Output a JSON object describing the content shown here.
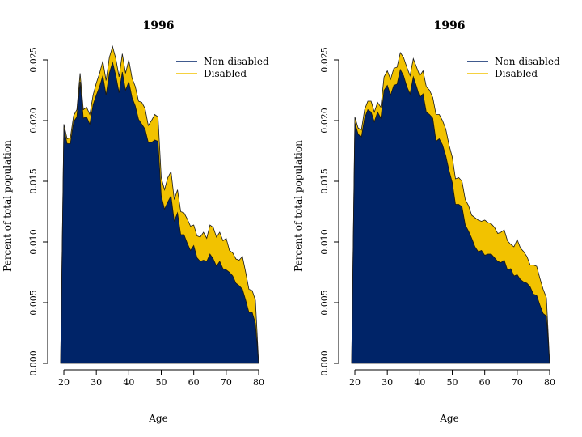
{
  "chart_data": [
    {
      "type": "area",
      "title": "1996",
      "xlabel": "Age",
      "ylabel": "Percent of total population",
      "xlim": [
        19,
        80
      ],
      "ylim": [
        0,
        0.025
      ],
      "xticks": [
        20,
        30,
        40,
        50,
        60,
        70,
        80
      ],
      "yticks": [
        "0.000",
        "0.005",
        "0.010",
        "0.015",
        "0.020",
        "0.025"
      ],
      "legend_position": "top-right",
      "stacked": true,
      "x": [
        19,
        20,
        21,
        22,
        23,
        24,
        25,
        26,
        27,
        28,
        29,
        30,
        31,
        32,
        33,
        34,
        35,
        36,
        37,
        38,
        39,
        40,
        41,
        42,
        43,
        44,
        45,
        46,
        47,
        48,
        49,
        50,
        51,
        52,
        53,
        54,
        55,
        56,
        57,
        58,
        59,
        60,
        61,
        62,
        63,
        64,
        65,
        66,
        67,
        68,
        69,
        70,
        71,
        72,
        73,
        74,
        75,
        76,
        77,
        78,
        79,
        80
      ],
      "series": [
        {
          "name": "Non-disabled",
          "color": "#002468",
          "values": [
            0,
            0.0194,
            0.0181,
            0.0181,
            0.0199,
            0.0203,
            0.0232,
            0.0202,
            0.0203,
            0.0197,
            0.0213,
            0.0221,
            0.0228,
            0.0237,
            0.0221,
            0.0239,
            0.0248,
            0.0237,
            0.0223,
            0.024,
            0.0225,
            0.0232,
            0.0219,
            0.0212,
            0.0201,
            0.0197,
            0.0193,
            0.0182,
            0.0182,
            0.0184,
            0.0183,
            0.0138,
            0.0127,
            0.0133,
            0.0138,
            0.0117,
            0.0124,
            0.0106,
            0.0106,
            0.0099,
            0.0093,
            0.0097,
            0.0087,
            0.0084,
            0.0085,
            0.0084,
            0.009,
            0.0086,
            0.008,
            0.0084,
            0.0078,
            0.0077,
            0.0075,
            0.0072,
            0.0066,
            0.0064,
            0.0061,
            0.0052,
            0.0042,
            0.0042,
            0.0033,
            0
          ]
        },
        {
          "name": "Disabled",
          "color": "#f2c200",
          "values": [
            0,
            0.0003,
            0.0004,
            0.0005,
            0.0005,
            0.0006,
            0.0007,
            0.0007,
            0.0008,
            0.0008,
            0.0008,
            0.001,
            0.0011,
            0.0012,
            0.0012,
            0.0013,
            0.0013,
            0.0014,
            0.0013,
            0.0015,
            0.0014,
            0.0018,
            0.0016,
            0.0016,
            0.0015,
            0.0018,
            0.0017,
            0.0014,
            0.0018,
            0.0021,
            0.002,
            0.0015,
            0.0016,
            0.002,
            0.002,
            0.0018,
            0.0019,
            0.0019,
            0.0018,
            0.002,
            0.002,
            0.0017,
            0.0018,
            0.002,
            0.0023,
            0.0019,
            0.0024,
            0.0026,
            0.0024,
            0.0024,
            0.0023,
            0.0026,
            0.0018,
            0.0019,
            0.002,
            0.0021,
            0.0027,
            0.0023,
            0.0019,
            0.0018,
            0.0019,
            0
          ]
        }
      ]
    },
    {
      "type": "area",
      "title": "1996",
      "xlabel": "Age",
      "ylabel": "Percent of total population",
      "xlim": [
        19,
        80
      ],
      "ylim": [
        0,
        0.025
      ],
      "xticks": [
        20,
        30,
        40,
        50,
        60,
        70,
        80
      ],
      "yticks": [
        "0.000",
        "0.005",
        "0.010",
        "0.015",
        "0.020",
        "0.025"
      ],
      "legend_position": "top-right",
      "stacked": true,
      "x": [
        19,
        20,
        21,
        22,
        23,
        24,
        25,
        26,
        27,
        28,
        29,
        30,
        31,
        32,
        33,
        34,
        35,
        36,
        37,
        38,
        39,
        40,
        41,
        42,
        43,
        44,
        45,
        46,
        47,
        48,
        49,
        50,
        51,
        52,
        53,
        54,
        55,
        56,
        57,
        58,
        59,
        60,
        61,
        62,
        63,
        64,
        65,
        66,
        67,
        68,
        69,
        70,
        71,
        72,
        73,
        74,
        75,
        76,
        77,
        78,
        79,
        80
      ],
      "series": [
        {
          "name": "Non-disabled",
          "color": "#002468",
          "values": [
            0,
            0.0198,
            0.0189,
            0.0186,
            0.0202,
            0.0209,
            0.0207,
            0.0199,
            0.0207,
            0.0202,
            0.0225,
            0.0229,
            0.0221,
            0.0229,
            0.023,
            0.0242,
            0.0237,
            0.0228,
            0.0222,
            0.0236,
            0.0228,
            0.0219,
            0.0222,
            0.0207,
            0.0205,
            0.0202,
            0.0183,
            0.0185,
            0.018,
            0.0171,
            0.0159,
            0.0149,
            0.0131,
            0.0131,
            0.0129,
            0.0114,
            0.0109,
            0.0103,
            0.0096,
            0.0092,
            0.0093,
            0.0089,
            0.009,
            0.009,
            0.0087,
            0.0084,
            0.0083,
            0.0085,
            0.0077,
            0.0078,
            0.0072,
            0.0073,
            0.0069,
            0.0067,
            0.0066,
            0.0063,
            0.0057,
            0.0056,
            0.0048,
            0.0041,
            0.0039,
            0
          ]
        },
        {
          "name": "Disabled",
          "color": "#f2c200",
          "values": [
            0,
            0.0005,
            0.0005,
            0.0006,
            0.0007,
            0.0007,
            0.0009,
            0.0008,
            0.0008,
            0.0009,
            0.0011,
            0.0012,
            0.0013,
            0.0014,
            0.0014,
            0.0014,
            0.0015,
            0.0016,
            0.0015,
            0.0015,
            0.0016,
            0.0018,
            0.0019,
            0.0021,
            0.002,
            0.0017,
            0.0022,
            0.002,
            0.002,
            0.0022,
            0.0021,
            0.0021,
            0.0021,
            0.0022,
            0.0021,
            0.0021,
            0.0021,
            0.0019,
            0.0024,
            0.0026,
            0.0024,
            0.0029,
            0.0026,
            0.0025,
            0.0025,
            0.0023,
            0.0025,
            0.0025,
            0.0024,
            0.002,
            0.0024,
            0.0029,
            0.0026,
            0.0025,
            0.0022,
            0.0018,
            0.0024,
            0.0024,
            0.0022,
            0.002,
            0.0015,
            0
          ]
        }
      ]
    }
  ]
}
